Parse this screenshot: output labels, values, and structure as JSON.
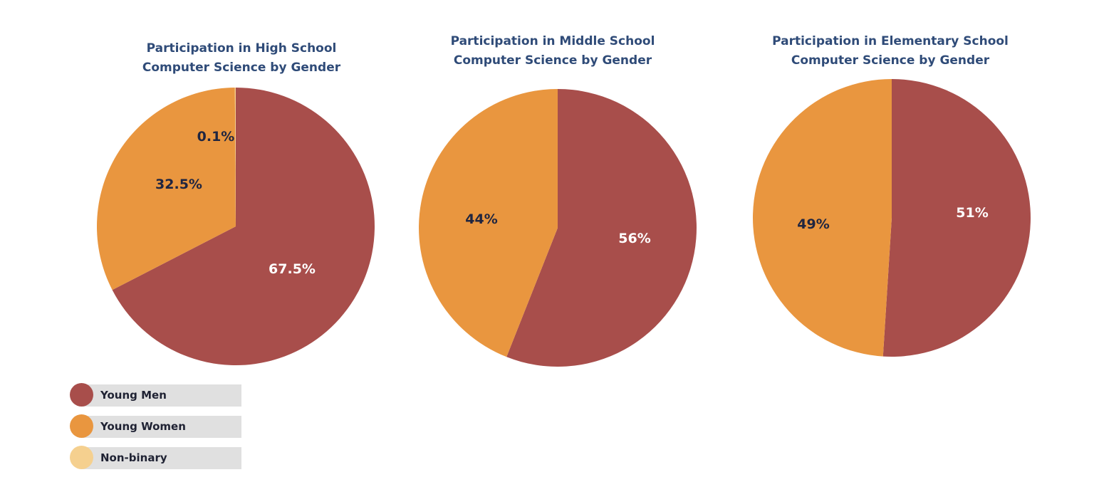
{
  "colors": {
    "young_men": "#A84E4B",
    "young_women": "#E9963F",
    "non_binary": "#F5D08F",
    "title": "#2F4B78"
  },
  "legend": [
    {
      "label": "Young Men",
      "color": "#A84E4B"
    },
    {
      "label": "Young Women",
      "color": "#E9963F"
    },
    {
      "label": "Non-binary",
      "color": "#F5D08F"
    }
  ],
  "legend_position": "bottom-left",
  "chart_data": [
    {
      "type": "pie",
      "title_lines": [
        "Participation in High School",
        "Computer Science by Gender"
      ],
      "slices": [
        {
          "category": "Young Men",
          "value": 67.5,
          "label": "67.5%"
        },
        {
          "category": "Young Women",
          "value": 32.5,
          "label": "32.5%"
        },
        {
          "category": "Non-binary",
          "value": 0.1,
          "label": "0.1%"
        }
      ]
    },
    {
      "type": "pie",
      "title_lines": [
        "Participation in Middle School",
        "Computer Science by Gender"
      ],
      "slices": [
        {
          "category": "Young Men",
          "value": 56,
          "label": "56%"
        },
        {
          "category": "Young Women",
          "value": 44,
          "label": "44%"
        }
      ]
    },
    {
      "type": "pie",
      "title_lines": [
        "Participation in Elementary School",
        "Computer Science by Gender"
      ],
      "slices": [
        {
          "category": "Young Men",
          "value": 51,
          "label": "51%"
        },
        {
          "category": "Young Women",
          "value": 49,
          "label": "49%"
        }
      ]
    }
  ]
}
